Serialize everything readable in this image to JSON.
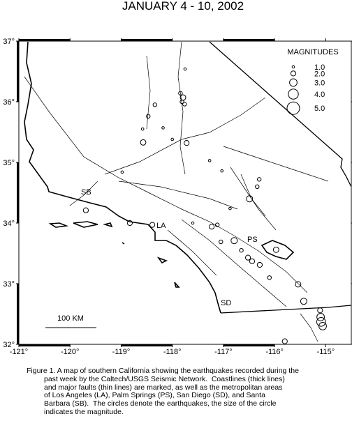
{
  "map": {
    "title": "JANUARY 4 - 10, 2002",
    "xlim": [
      -121,
      -114.5
    ],
    "ylim": [
      32,
      37
    ],
    "xticks": [
      {
        "value": -121,
        "label": "-121°"
      },
      {
        "value": -120,
        "label": "-120°"
      },
      {
        "value": -119,
        "label": "-119°"
      },
      {
        "value": -118,
        "label": "-118°"
      },
      {
        "value": -117,
        "label": "-117°"
      },
      {
        "value": -116,
        "label": "-116°"
      },
      {
        "value": -115,
        "label": "-115°"
      }
    ],
    "yticks": [
      {
        "value": 32,
        "label": "32°"
      },
      {
        "value": 33,
        "label": "33°"
      },
      {
        "value": 34,
        "label": "34°"
      },
      {
        "value": 35,
        "label": "35°"
      },
      {
        "value": 36,
        "label": "36°"
      },
      {
        "value": 37,
        "label": "37°"
      }
    ],
    "legend_title": "MAGNITUDES",
    "legend": [
      {
        "value": 1,
        "label": "1.0"
      },
      {
        "value": 2,
        "label": "2.0"
      },
      {
        "value": 3,
        "label": "3.0"
      },
      {
        "value": 4,
        "label": "4.0"
      },
      {
        "value": 5,
        "label": "5.0"
      }
    ],
    "places": [
      "SB",
      "LA",
      "PS",
      "SD"
    ],
    "scale_label": "100 KM",
    "earthquakes": [
      {
        "lon": -117.84,
        "lat": 36.14,
        "mag": 1.5
      },
      {
        "lon": -117.79,
        "lat": 36.07,
        "mag": 2.2
      },
      {
        "lon": -117.81,
        "lat": 36.0,
        "mag": 1.5
      },
      {
        "lon": -117.76,
        "lat": 35.96,
        "mag": 1.5
      },
      {
        "lon": -118.34,
        "lat": 35.95,
        "mag": 1.5
      },
      {
        "lon": -118.47,
        "lat": 35.76,
        "mag": 1.5
      },
      {
        "lon": -118.58,
        "lat": 35.55,
        "mag": 1.0
      },
      {
        "lon": -118.57,
        "lat": 35.33,
        "mag": 2.2
      },
      {
        "lon": -117.72,
        "lat": 35.32,
        "mag": 2.0
      },
      {
        "lon": -118.0,
        "lat": 35.38,
        "mag": 1.0
      },
      {
        "lon": -118.18,
        "lat": 35.57,
        "mag": 1.0
      },
      {
        "lon": -116.49,
        "lat": 34.4,
        "mag": 2.5
      },
      {
        "lon": -116.3,
        "lat": 34.72,
        "mag": 1.5
      },
      {
        "lon": -116.34,
        "lat": 34.6,
        "mag": 1.5
      },
      {
        "lon": -119.69,
        "lat": 34.21,
        "mag": 2.0
      },
      {
        "lon": -118.83,
        "lat": 34.0,
        "mag": 2.0
      },
      {
        "lon": -118.39,
        "lat": 33.97,
        "mag": 2.0
      },
      {
        "lon": -117.23,
        "lat": 33.94,
        "mag": 2.0
      },
      {
        "lon": -117.12,
        "lat": 33.97,
        "mag": 1.5
      },
      {
        "lon": -116.79,
        "lat": 33.71,
        "mag": 2.5
      },
      {
        "lon": -116.52,
        "lat": 33.43,
        "mag": 2.0
      },
      {
        "lon": -116.44,
        "lat": 33.37,
        "mag": 2.0
      },
      {
        "lon": -116.29,
        "lat": 33.31,
        "mag": 2.0
      },
      {
        "lon": -115.97,
        "lat": 33.56,
        "mag": 2.2
      },
      {
        "lon": -115.54,
        "lat": 32.99,
        "mag": 2.2
      },
      {
        "lon": -115.43,
        "lat": 32.71,
        "mag": 2.5
      },
      {
        "lon": -115.1,
        "lat": 32.45,
        "mag": 3.0
      },
      {
        "lon": -115.09,
        "lat": 32.37,
        "mag": 3.5
      },
      {
        "lon": -115.06,
        "lat": 32.3,
        "mag": 3.0
      },
      {
        "lon": -115.11,
        "lat": 32.56,
        "mag": 2.0
      },
      {
        "lon": -115.8,
        "lat": 32.05,
        "mag": 2.0
      },
      {
        "lon": -117.03,
        "lat": 34.86,
        "mag": 1.0
      },
      {
        "lon": -117.27,
        "lat": 35.03,
        "mag": 1.0
      },
      {
        "lon": -118.98,
        "lat": 34.84,
        "mag": 1.0
      },
      {
        "lon": -116.87,
        "lat": 34.24,
        "mag": 1.0
      },
      {
        "lon": -117.75,
        "lat": 36.54,
        "mag": 1.0
      },
      {
        "lon": -117.05,
        "lat": 33.69,
        "mag": 1.5
      },
      {
        "lon": -116.65,
        "lat": 33.55,
        "mag": 1.5
      },
      {
        "lon": -117.6,
        "lat": 34.0,
        "mag": 1.0
      },
      {
        "lon": -116.1,
        "lat": 33.1,
        "mag": 1.5
      }
    ],
    "caption": [
      "Figure 1. A map of southern California showing the earthquakes recorded during the",
      "past week by the Caltech/USGS Seismic Network.  Coastlines (thick lines)",
      "and major faults (thin lines) are marked, as well as the metropolitan areas",
      "of Los Angeles (LA), Palm Springs (PS), San Diego (SD), and Santa",
      "Barbara (SB).  The circles denote the earthquakes, the size of the circle",
      "indicates the magnitude."
    ]
  }
}
